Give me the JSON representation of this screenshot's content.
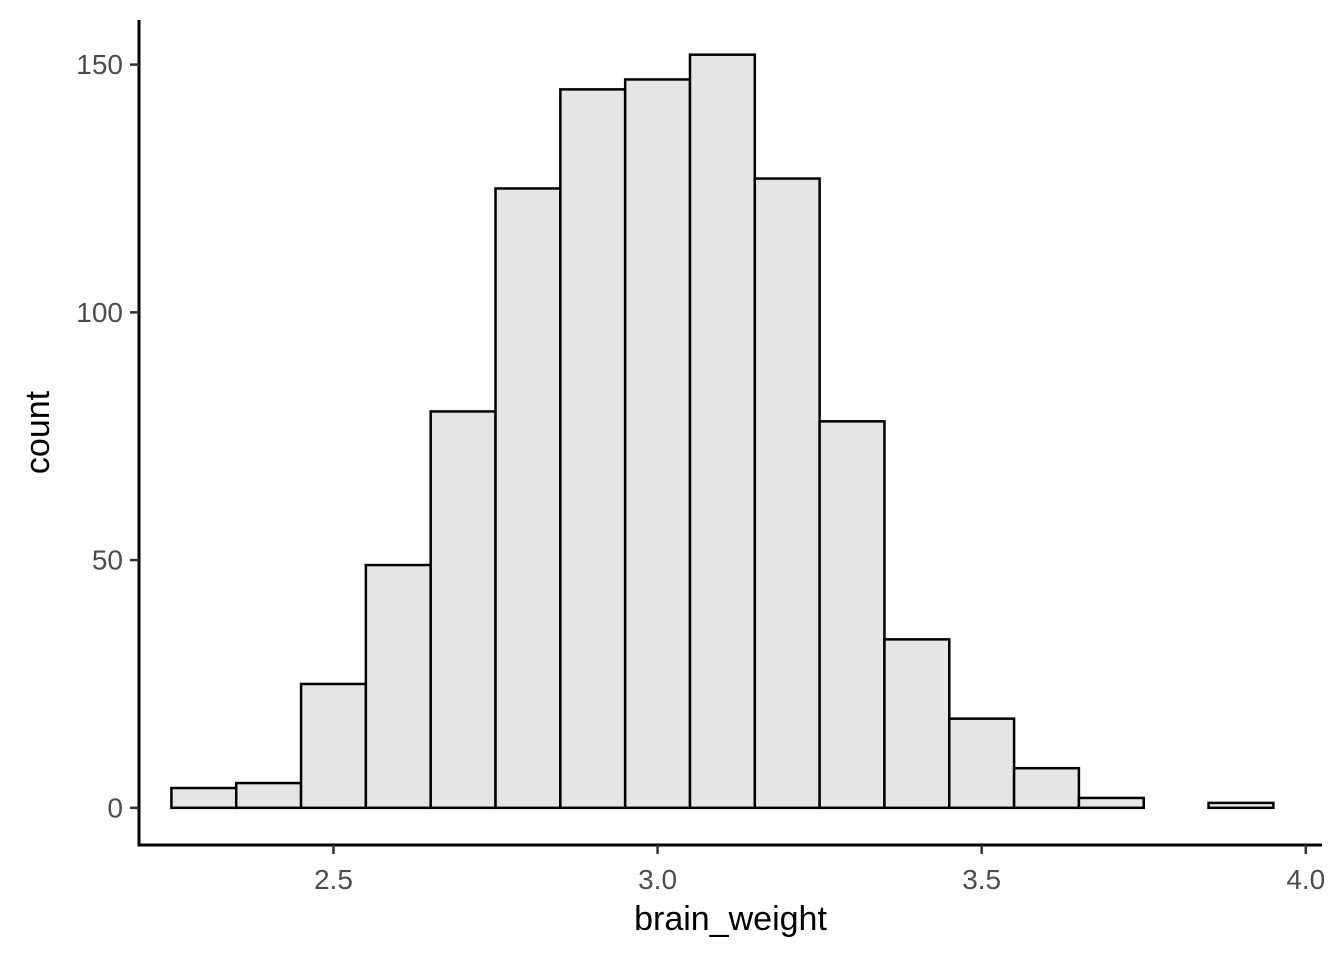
{
  "chart_data": {
    "type": "bar",
    "subtype": "histogram",
    "xlabel": "brain_weight",
    "ylabel": "count",
    "xlim": [
      2.2,
      4.025
    ],
    "ylim": [
      -7.5,
      159
    ],
    "x_ticks": [
      2.5,
      3.0,
      3.5,
      4.0
    ],
    "x_tick_labels": [
      "2.5",
      "3.0",
      "3.5",
      "4.0"
    ],
    "y_ticks": [
      0,
      50,
      100,
      150
    ],
    "y_tick_labels": [
      "0",
      "50",
      "100",
      "150"
    ],
    "bin_width": 0.1,
    "bins": [
      {
        "x_start": 2.25,
        "x_end": 2.35,
        "count": 4
      },
      {
        "x_start": 2.35,
        "x_end": 2.45,
        "count": 5
      },
      {
        "x_start": 2.45,
        "x_end": 2.55,
        "count": 25
      },
      {
        "x_start": 2.55,
        "x_end": 2.65,
        "count": 49
      },
      {
        "x_start": 2.65,
        "x_end": 2.75,
        "count": 80
      },
      {
        "x_start": 2.75,
        "x_end": 2.85,
        "count": 125
      },
      {
        "x_start": 2.85,
        "x_end": 2.95,
        "count": 145
      },
      {
        "x_start": 2.95,
        "x_end": 3.05,
        "count": 147
      },
      {
        "x_start": 3.05,
        "x_end": 3.15,
        "count": 152
      },
      {
        "x_start": 3.15,
        "x_end": 3.25,
        "count": 127
      },
      {
        "x_start": 3.25,
        "x_end": 3.35,
        "count": 78
      },
      {
        "x_start": 3.35,
        "x_end": 3.45,
        "count": 34
      },
      {
        "x_start": 3.45,
        "x_end": 3.55,
        "count": 18
      },
      {
        "x_start": 3.55,
        "x_end": 3.65,
        "count": 8
      },
      {
        "x_start": 3.65,
        "x_end": 3.75,
        "count": 2
      },
      {
        "x_start": 3.75,
        "x_end": 3.85,
        "count": 0
      },
      {
        "x_start": 3.85,
        "x_end": 3.95,
        "count": 1
      }
    ],
    "bar_fill": "#e5e5e5",
    "bar_outline": "#000000",
    "grid": false,
    "legend": "none",
    "theme": "classic"
  }
}
